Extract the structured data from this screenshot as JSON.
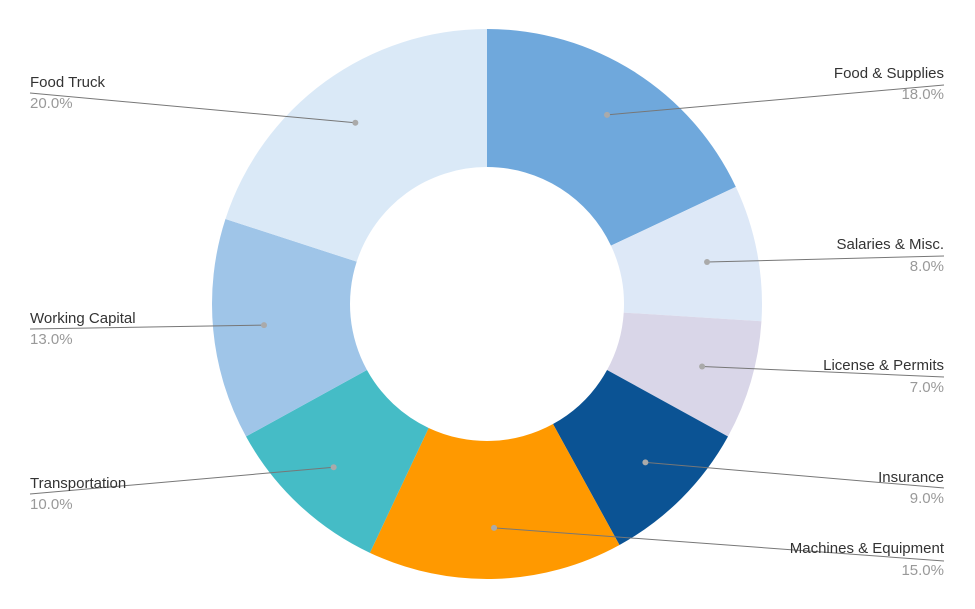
{
  "chart_data": {
    "type": "pie",
    "donut": true,
    "start_angle_deg": 0,
    "direction": "clockwise",
    "slices": [
      {
        "label": "Food & Supplies",
        "value": 18.0,
        "pct_label": "18.0%",
        "color": "#6fa8dc",
        "side": "right"
      },
      {
        "label": "Salaries & Misc.",
        "value": 8.0,
        "pct_label": "8.0%",
        "color": "#dde8f7",
        "side": "right"
      },
      {
        "label": "License & Permits",
        "value": 7.0,
        "pct_label": "7.0%",
        "color": "#d9d6e8",
        "side": "right"
      },
      {
        "label": "Insurance",
        "value": 9.0,
        "pct_label": "9.0%",
        "color": "#0b5394",
        "side": "right"
      },
      {
        "label": "Machines & Equipment",
        "value": 15.0,
        "pct_label": "15.0%",
        "color": "#ff9900",
        "side": "right"
      },
      {
        "label": "Transportation",
        "value": 10.0,
        "pct_label": "10.0%",
        "color": "#45bcc6",
        "side": "left"
      },
      {
        "label": "Working Capital",
        "value": 13.0,
        "pct_label": "13.0%",
        "color": "#9fc5e8",
        "side": "left"
      },
      {
        "label": "Food Truck",
        "value": 20.0,
        "pct_label": "20.0%",
        "color": "#dae9f7",
        "side": "left"
      }
    ]
  }
}
